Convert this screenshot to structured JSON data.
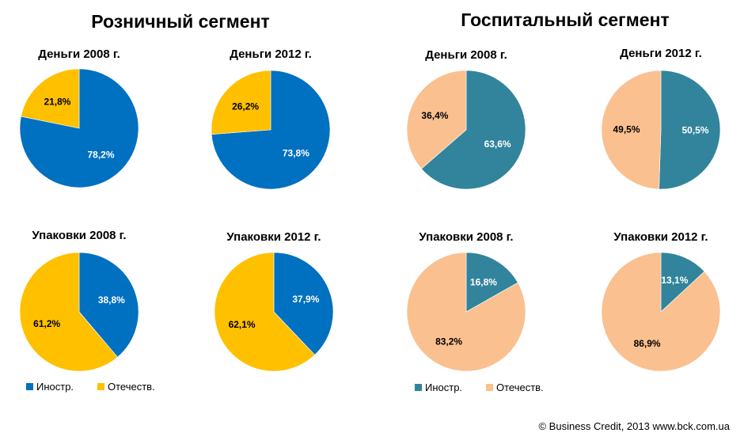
{
  "segments": [
    {
      "title": "Розничный сегмент",
      "colors": {
        "foreign": "#0070C0",
        "domestic": "#FFC000"
      }
    },
    {
      "title": "Госпитальный сегмент",
      "colors": {
        "foreign": "#31849B",
        "domestic": "#FAC090"
      }
    }
  ],
  "legend": {
    "retail": [
      {
        "label": "Иностр.",
        "color": "#0070C0"
      },
      {
        "label": "Отечеств.",
        "color": "#FFC000"
      }
    ],
    "hospital": [
      {
        "label": "Иностр.",
        "color": "#31849B"
      },
      {
        "label": "Отечеств.",
        "color": "#FAC090"
      }
    ]
  },
  "footer": "© Business Credit, 2013  www.bck.com.ua",
  "chart_data": [
    {
      "type": "pie",
      "segment": "Розничный сегмент",
      "title": "Деньги 2008 г.",
      "slices": [
        {
          "category": "Иностр.",
          "value": 78.2,
          "label": "78,2%"
        },
        {
          "category": "Отечеств.",
          "value": 21.8,
          "label": "21,8%"
        }
      ]
    },
    {
      "type": "pie",
      "segment": "Розничный сегмент",
      "title": "Деньги 2012 г.",
      "slices": [
        {
          "category": "Иностр.",
          "value": 73.8,
          "label": "73,8%"
        },
        {
          "category": "Отечеств.",
          "value": 26.2,
          "label": "26,2%"
        }
      ]
    },
    {
      "type": "pie",
      "segment": "Розничный сегмент",
      "title": "Упаковки 2008 г.",
      "slices": [
        {
          "category": "Иностр.",
          "value": 38.8,
          "label": "38,8%"
        },
        {
          "category": "Отечеств.",
          "value": 61.2,
          "label": "61,2%"
        }
      ]
    },
    {
      "type": "pie",
      "segment": "Розничный сегмент",
      "title": "Упаковки 2012 г.",
      "slices": [
        {
          "category": "Иностр.",
          "value": 37.9,
          "label": "37,9%"
        },
        {
          "category": "Отечеств.",
          "value": 62.1,
          "label": "62,1%"
        }
      ]
    },
    {
      "type": "pie",
      "segment": "Госпитальный сегмент",
      "title": "Деньги 2008 г.",
      "slices": [
        {
          "category": "Иностр.",
          "value": 63.6,
          "label": "63,6%"
        },
        {
          "category": "Отечеств.",
          "value": 36.4,
          "label": "36,4%"
        }
      ]
    },
    {
      "type": "pie",
      "segment": "Госпитальный сегмент",
      "title": "Деньги 2012 г.",
      "slices": [
        {
          "category": "Иностр.",
          "value": 50.5,
          "label": "50,5%"
        },
        {
          "category": "Отечеств.",
          "value": 49.5,
          "label": "49,5%"
        }
      ]
    },
    {
      "type": "pie",
      "segment": "Госпитальный сегмент",
      "title": "Упаковки 2008 г.",
      "slices": [
        {
          "category": "Иностр.",
          "value": 16.8,
          "label": "16,8%"
        },
        {
          "category": "Отечеств.",
          "value": 83.2,
          "label": "83,2%"
        }
      ]
    },
    {
      "type": "pie",
      "segment": "Госпитальный сегмент",
      "title": "Упаковки 2012 г.",
      "slices": [
        {
          "category": "Иностр.",
          "value": 13.1,
          "label": "13,1%"
        },
        {
          "category": "Отечеств.",
          "value": 86.9,
          "label": "86,9%"
        }
      ]
    }
  ]
}
